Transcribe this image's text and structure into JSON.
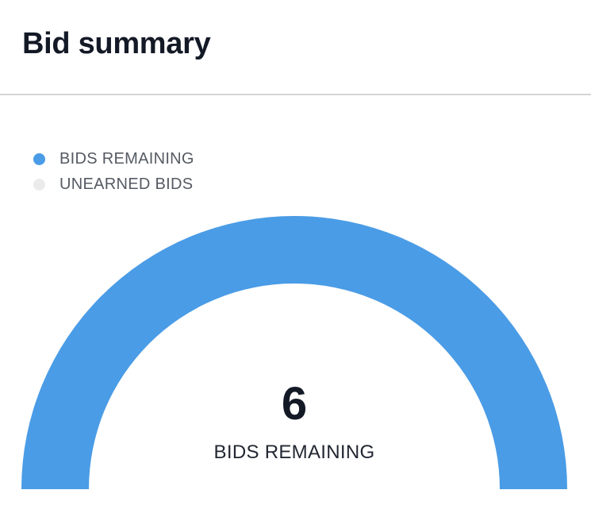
{
  "header": {
    "title": "Bid summary"
  },
  "legend": [
    {
      "label": "BIDS REMAINING",
      "color": "#4a9ce6"
    },
    {
      "label": "UNEARNED BIDS",
      "color": "#ebebeb"
    }
  ],
  "gauge": {
    "value": "6",
    "label": "BIDS REMAINING",
    "filled_fraction": 1.0,
    "fill_color": "#4a9ce6",
    "track_color": "#ebebeb"
  }
}
